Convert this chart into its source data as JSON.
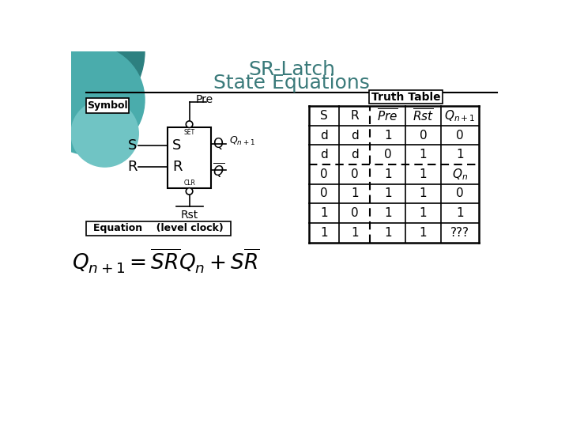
{
  "title_line1": "SR-Latch",
  "title_line2": "State Equations",
  "title_color": "#3A7A7A",
  "bg_color": "#FFFFFF",
  "symbol_label": "Symbol",
  "pre_label": "Pre",
  "rst_label": "Rst",
  "equation_label": "Equation    (level clock)",
  "truth_table_label": "Truth Table",
  "table_rows": [
    [
      "S",
      "R",
      "pre",
      "rst",
      "qn1_hdr"
    ],
    [
      "d",
      "d",
      "1",
      "0",
      "0"
    ],
    [
      "d",
      "d",
      "0",
      "1",
      "1"
    ],
    [
      "0",
      "0",
      "1",
      "1",
      "Qn"
    ],
    [
      "0",
      "1",
      "1",
      "1",
      "0"
    ],
    [
      "1",
      "0",
      "1",
      "1",
      "1"
    ],
    [
      "1",
      "1",
      "1",
      "1",
      "???"
    ]
  ],
  "teal_dark": "#2D8080",
  "teal_mid": "#4AACAC",
  "teal_light": "#70C4C4"
}
